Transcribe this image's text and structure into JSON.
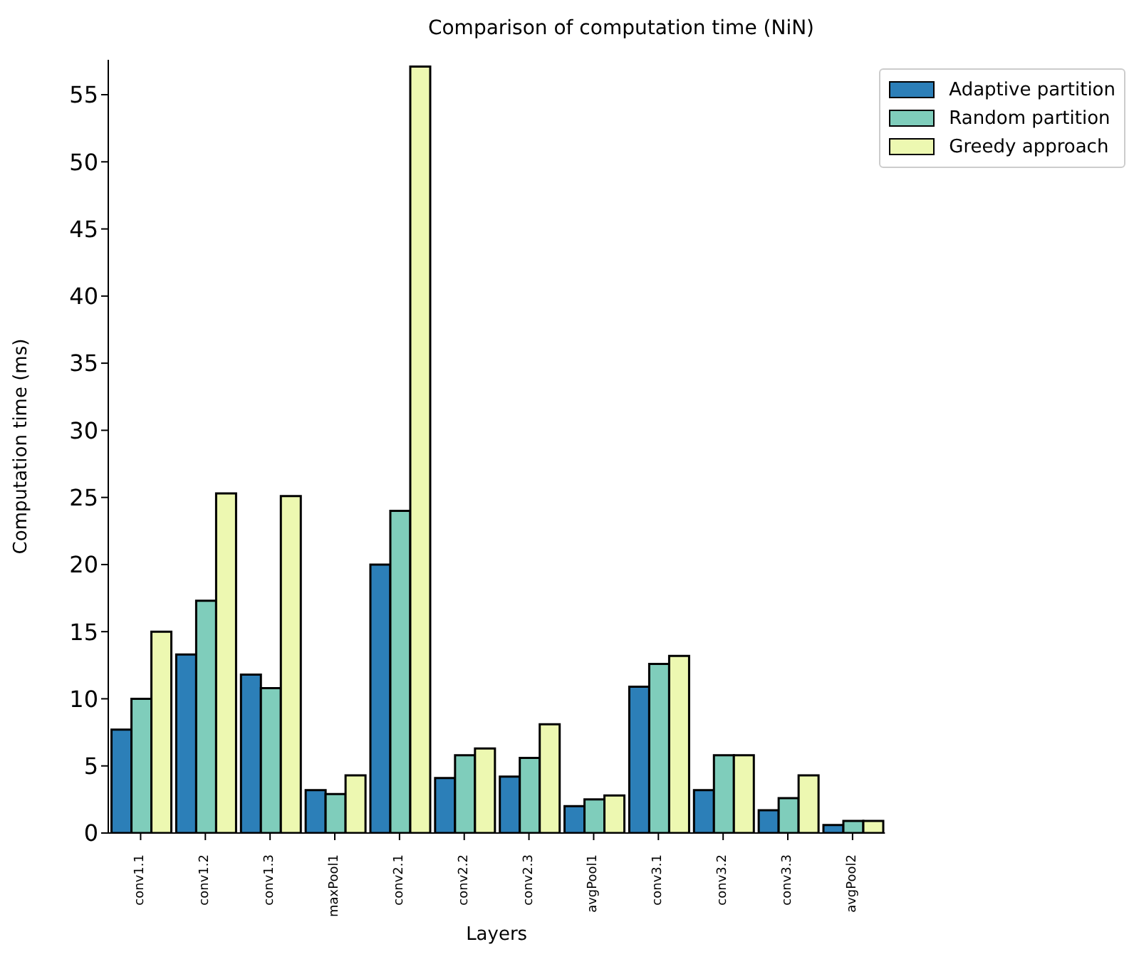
{
  "chart_data": {
    "type": "bar",
    "title": "Comparison of computation time (NiN)",
    "xlabel": "Layers",
    "ylabel": "Computation time (ms)",
    "categories": [
      "conv1.1",
      "conv1.2",
      "conv1.3",
      "maxPool1",
      "conv2.1",
      "conv2.2",
      "conv2.3",
      "avgPool1",
      "conv3.1",
      "conv3.2",
      "conv3.3",
      "avgPool2"
    ],
    "series": [
      {
        "name": "Adaptive partition",
        "color": "#2c7fb8",
        "values": [
          7.7,
          13.3,
          11.8,
          3.2,
          20.0,
          4.1,
          4.2,
          2.0,
          10.9,
          3.2,
          1.7,
          0.6
        ]
      },
      {
        "name": "Random partition",
        "color": "#7fcdbb",
        "values": [
          10.0,
          17.3,
          10.8,
          2.9,
          24.0,
          5.8,
          5.6,
          2.5,
          12.6,
          5.8,
          2.6,
          0.9
        ]
      },
      {
        "name": "Greedy approach",
        "color": "#edf8b1",
        "values": [
          15.0,
          25.3,
          25.1,
          4.3,
          57.1,
          6.3,
          8.1,
          2.8,
          13.2,
          5.8,
          4.3,
          0.9
        ]
      }
    ],
    "ylim": [
      0,
      57.6
    ],
    "yticks": [
      0,
      5,
      10,
      15,
      20,
      25,
      30,
      35,
      40,
      45,
      50,
      55
    ],
    "grid": false,
    "legend": "top right"
  }
}
